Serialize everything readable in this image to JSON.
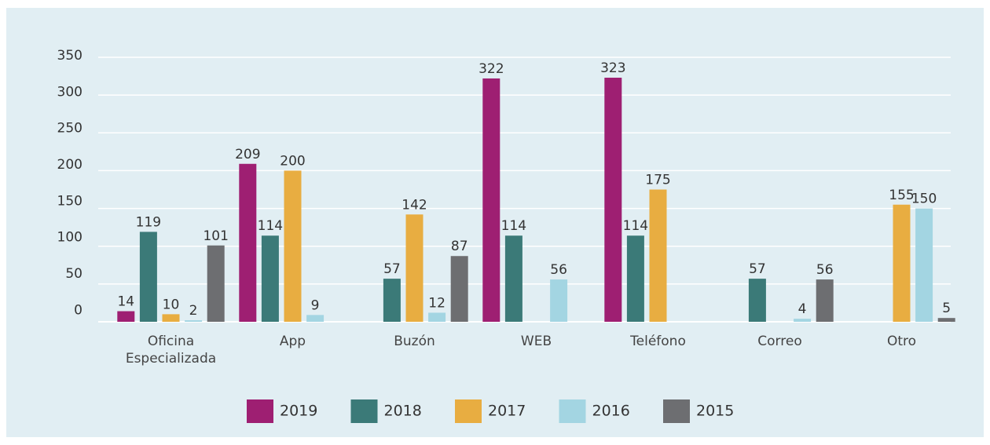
{
  "chart_data": {
    "type": "bar",
    "categories": [
      "Oficina Especializada",
      "App",
      "Buzón",
      "WEB",
      "Teléfono",
      "Correo",
      "Otro"
    ],
    "series": [
      {
        "name": "2019",
        "color": "#9e1f72",
        "values": [
          14,
          209,
          null,
          322,
          323,
          null,
          null
        ]
      },
      {
        "name": "2018",
        "color": "#3b7a78",
        "values": [
          119,
          114,
          57,
          114,
          114,
          57,
          null
        ]
      },
      {
        "name": "2017",
        "color": "#e8ad41",
        "values": [
          10,
          200,
          142,
          null,
          175,
          null,
          155
        ]
      },
      {
        "name": "2016",
        "color": "#a3d5e2",
        "values": [
          2,
          9,
          12,
          56,
          null,
          4,
          150
        ]
      },
      {
        "name": "2015",
        "color": "#6d6e71",
        "values": [
          101,
          null,
          87,
          null,
          null,
          56,
          5
        ]
      }
    ],
    "ylim": [
      0,
      350
    ],
    "yticks": [
      0,
      50,
      100,
      150,
      200,
      250,
      300,
      350
    ],
    "grid": true,
    "legend": "bottom"
  }
}
